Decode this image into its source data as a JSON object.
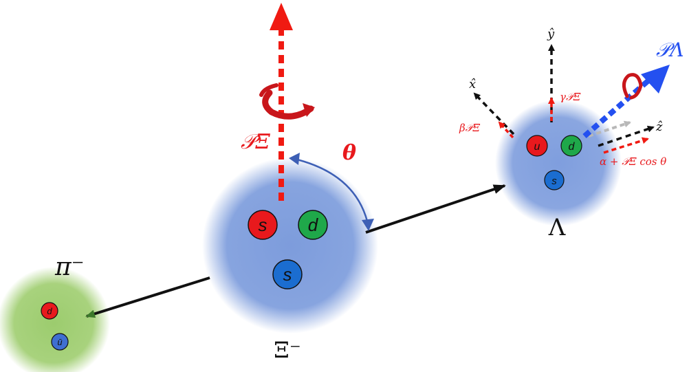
{
  "particles": {
    "xi": {
      "label": "Ξ⁻",
      "quarks": [
        {
          "name": "s",
          "color": "#e8191d"
        },
        {
          "name": "d",
          "color": "#1fa84a"
        },
        {
          "name": "s",
          "color": "#1b6dd0"
        }
      ]
    },
    "lambda": {
      "label": "Λ",
      "quarks": [
        {
          "name": "u",
          "color": "#e8191d"
        },
        {
          "name": "d",
          "color": "#1fa84a"
        },
        {
          "name": "s",
          "color": "#1b6dd0"
        }
      ]
    },
    "pion": {
      "label": "π⁻",
      "quarks": [
        {
          "name": "d",
          "color": "#e8191d"
        },
        {
          "name": "ū",
          "color": "#3f6fd1"
        }
      ]
    }
  },
  "labels": {
    "p_xi": "𝒫Ξ",
    "theta": "θ",
    "p_lambda": "𝒫Λ",
    "y_axis": "ŷ",
    "x_axis": "x̂",
    "z_axis": "ẑ",
    "gamma_p": "γ𝒫Ξ",
    "beta_p": "β𝒫Ξ",
    "alpha_p": "α + 𝒫Ξ cos θ"
  },
  "colors": {
    "red_arrow": "#f01a12",
    "blue_arrow": "#2450f0",
    "baryon_glow": "#7f9fde",
    "meson_glow": "#9ccc6e",
    "label_red": "#e8191d"
  }
}
